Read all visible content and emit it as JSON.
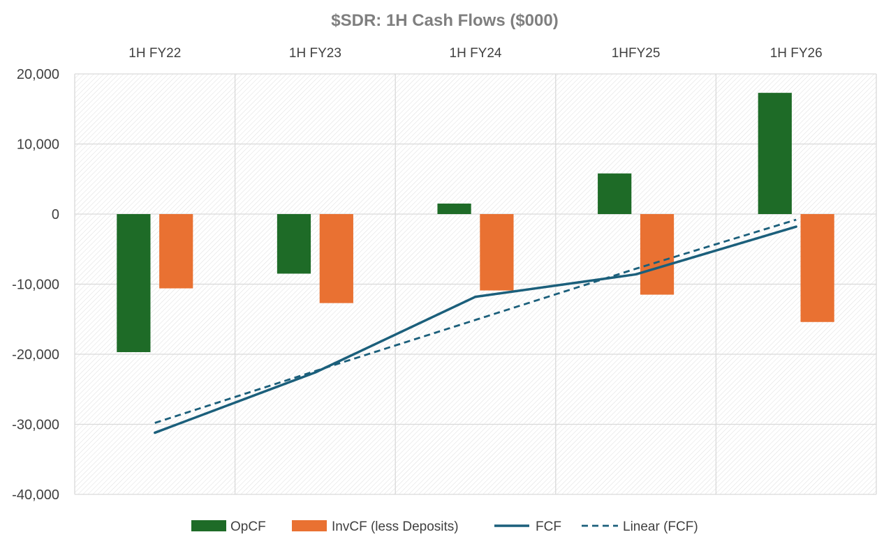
{
  "chart_data": {
    "type": "bar",
    "title": "$SDR: 1H Cash Flows ($000)",
    "categories": [
      "1H FY22",
      "1H FY23",
      "1H FY24",
      "1HFY25",
      "1H FY26"
    ],
    "ylim": [
      -40000,
      20000
    ],
    "yticks": [
      20000,
      10000,
      0,
      -10000,
      -20000,
      -30000,
      -40000
    ],
    "ytick_labels": [
      "20,000",
      "10,000",
      "0",
      "-10,000",
      "-20,000",
      "-30,000",
      "-40,000"
    ],
    "grid": true,
    "legend_position": "bottom",
    "category_axis_position": "top",
    "series": [
      {
        "name": "OpCF",
        "type": "bar",
        "color": "#1e6b27",
        "values": [
          -19700,
          -8500,
          1500,
          5800,
          17300
        ]
      },
      {
        "name": "InvCF (less Deposits)",
        "type": "bar",
        "color": "#e97132",
        "values": [
          -10600,
          -12700,
          -10900,
          -11500,
          -15400
        ]
      },
      {
        "name": "FCF",
        "type": "line",
        "color": "#1b5f7b",
        "values": [
          -31200,
          -22600,
          -11800,
          -8600,
          -1800
        ]
      },
      {
        "name": "Linear (FCF)",
        "type": "trendline-dashed",
        "color": "#1b5f7b",
        "values": [
          -29800,
          -22400,
          -15100,
          -7800,
          -800
        ]
      }
    ]
  }
}
